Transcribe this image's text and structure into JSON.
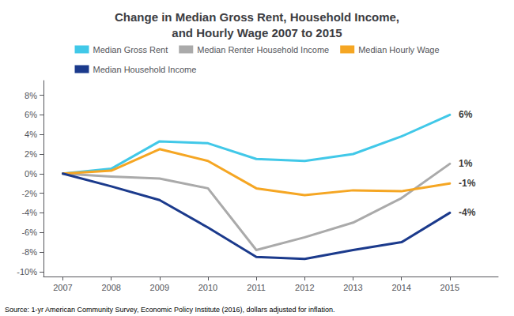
{
  "chart_data": {
    "type": "line",
    "title": "Change in Median Gross Rent, Household Income,\nand Hourly Wage 2007 to 2015",
    "source": "Source: 1-yr American Community Survey, Economic Policy Institute (2016), dollars adjusted for inflation.",
    "x": [
      2007,
      2008,
      2009,
      2010,
      2011,
      2012,
      2013,
      2014,
      2015
    ],
    "series": [
      {
        "name": "Median Gross Rent",
        "color": "#41C8E8",
        "values": [
          0.0,
          0.5,
          3.3,
          3.1,
          1.5,
          1.3,
          2.0,
          3.8,
          6.0
        ]
      },
      {
        "name": "Median Renter Household Income",
        "color": "#AAAAAA",
        "values": [
          0.0,
          -0.3,
          -0.5,
          -1.5,
          -7.8,
          -6.5,
          -5.0,
          -2.5,
          1.0
        ]
      },
      {
        "name": "Median Hourly Wage",
        "color": "#F5A623",
        "values": [
          0.0,
          0.3,
          2.5,
          1.3,
          -1.5,
          -2.2,
          -1.7,
          -1.8,
          -1.0
        ]
      },
      {
        "name": "Median Household Income",
        "color": "#1B3A8C",
        "values": [
          0.0,
          -1.3,
          -2.7,
          -5.5,
          -8.5,
          -8.7,
          -7.8,
          -7.0,
          -4.0
        ]
      }
    ],
    "annotations": [
      {
        "text": "6%",
        "x": 2015.15,
        "y": 6.0
      },
      {
        "text": "1%",
        "x": 2015.15,
        "y": 1.0
      },
      {
        "text": "-1%",
        "x": 2015.15,
        "y": -1.0
      },
      {
        "text": "-4%",
        "x": 2015.15,
        "y": -4.0
      }
    ],
    "xlim": [
      2006.6,
      2016.0
    ],
    "xticks": [
      2007,
      2008,
      2009,
      2010,
      2011,
      2012,
      2013,
      2014,
      2015
    ],
    "ylim": [
      -10.5,
      9.5
    ],
    "yticks": [
      {
        "value": -10,
        "label": "-10%"
      },
      {
        "value": -8,
        "label": "-8%"
      },
      {
        "value": -6,
        "label": "-6%"
      },
      {
        "value": -4,
        "label": "-4%"
      },
      {
        "value": -2,
        "label": "-2%"
      },
      {
        "value": 0,
        "label": "0%"
      },
      {
        "value": 2,
        "label": "2%"
      },
      {
        "value": 4,
        "label": "4%"
      },
      {
        "value": 6,
        "label": "6%"
      },
      {
        "value": 8,
        "label": "8%"
      }
    ],
    "grid": false,
    "legend": "top"
  }
}
